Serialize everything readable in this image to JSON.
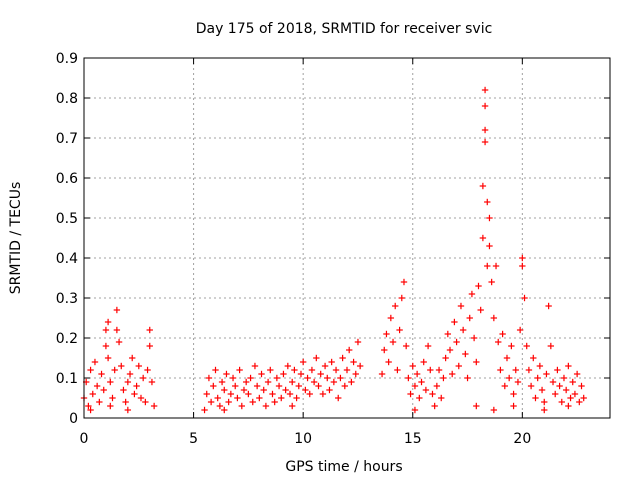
{
  "chart_data": {
    "type": "scatter",
    "title": "Day 175 of 2018, SRMTID for receiver svic",
    "xlabel": "GPS time / hours",
    "ylabel": "SRMTID / TECUs",
    "xlim": [
      0,
      24
    ],
    "ylim": [
      0,
      0.9
    ],
    "xticks": [
      0,
      5,
      10,
      15,
      20
    ],
    "xtick_labels": [
      "0",
      "5",
      "10",
      "15",
      "20"
    ],
    "yticks": [
      0,
      0.1,
      0.2,
      0.3,
      0.4,
      0.5,
      0.6,
      0.7,
      0.8,
      0.9
    ],
    "ytick_labels": [
      "0",
      "0.1",
      "0.2",
      "0.3",
      "0.4",
      "0.5",
      "0.6",
      "0.7",
      "0.8",
      "0.9"
    ],
    "grid": true,
    "marker": "+",
    "color": "#ff0000",
    "series": [
      {
        "name": "SRMTID",
        "points": [
          [
            0.0,
            0.05
          ],
          [
            0.1,
            0.09
          ],
          [
            0.2,
            0.03
          ],
          [
            0.3,
            0.12
          ],
          [
            0.4,
            0.06
          ],
          [
            0.5,
            0.14
          ],
          [
            0.6,
            0.08
          ],
          [
            0.7,
            0.04
          ],
          [
            0.8,
            0.11
          ],
          [
            0.9,
            0.07
          ],
          [
            1.0,
            0.22
          ],
          [
            1.0,
            0.18
          ],
          [
            1.1,
            0.24
          ],
          [
            1.1,
            0.15
          ],
          [
            1.2,
            0.09
          ],
          [
            1.3,
            0.05
          ],
          [
            1.4,
            0.12
          ],
          [
            1.5,
            0.27
          ],
          [
            1.5,
            0.22
          ],
          [
            1.6,
            0.19
          ],
          [
            1.7,
            0.13
          ],
          [
            1.8,
            0.07
          ],
          [
            1.9,
            0.04
          ],
          [
            2.0,
            0.09
          ],
          [
            2.1,
            0.11
          ],
          [
            2.2,
            0.15
          ],
          [
            2.3,
            0.06
          ],
          [
            2.4,
            0.08
          ],
          [
            2.5,
            0.13
          ],
          [
            2.6,
            0.05
          ],
          [
            2.7,
            0.1
          ],
          [
            2.8,
            0.04
          ],
          [
            2.9,
            0.12
          ],
          [
            3.0,
            0.22
          ],
          [
            3.0,
            0.18
          ],
          [
            3.1,
            0.09
          ],
          [
            3.2,
            0.03
          ],
          [
            0.3,
            0.02
          ],
          [
            1.2,
            0.03
          ],
          [
            2.0,
            0.02
          ],
          [
            5.5,
            0.02
          ],
          [
            5.6,
            0.06
          ],
          [
            5.7,
            0.1
          ],
          [
            5.8,
            0.04
          ],
          [
            5.9,
            0.08
          ],
          [
            6.0,
            0.12
          ],
          [
            6.1,
            0.05
          ],
          [
            6.2,
            0.03
          ],
          [
            6.3,
            0.09
          ],
          [
            6.4,
            0.07
          ],
          [
            6.5,
            0.11
          ],
          [
            6.6,
            0.04
          ],
          [
            6.7,
            0.06
          ],
          [
            6.8,
            0.1
          ],
          [
            6.9,
            0.08
          ],
          [
            7.0,
            0.05
          ],
          [
            7.1,
            0.12
          ],
          [
            7.2,
            0.03
          ],
          [
            7.3,
            0.07
          ],
          [
            7.4,
            0.09
          ],
          [
            7.5,
            0.06
          ],
          [
            7.6,
            0.1
          ],
          [
            7.7,
            0.04
          ],
          [
            7.8,
            0.13
          ],
          [
            7.9,
            0.08
          ],
          [
            8.0,
            0.05
          ],
          [
            8.1,
            0.11
          ],
          [
            8.2,
            0.07
          ],
          [
            8.3,
            0.03
          ],
          [
            8.4,
            0.09
          ],
          [
            8.5,
            0.12
          ],
          [
            8.6,
            0.06
          ],
          [
            8.7,
            0.04
          ],
          [
            8.8,
            0.1
          ],
          [
            8.9,
            0.08
          ],
          [
            9.0,
            0.05
          ],
          [
            9.1,
            0.11
          ],
          [
            9.2,
            0.07
          ],
          [
            9.3,
            0.13
          ],
          [
            9.4,
            0.06
          ],
          [
            9.5,
            0.09
          ],
          [
            9.6,
            0.12
          ],
          [
            9.7,
            0.05
          ],
          [
            9.8,
            0.08
          ],
          [
            9.9,
            0.11
          ],
          [
            10.0,
            0.14
          ],
          [
            10.1,
            0.07
          ],
          [
            10.2,
            0.1
          ],
          [
            10.3,
            0.06
          ],
          [
            10.4,
            0.12
          ],
          [
            10.5,
            0.09
          ],
          [
            10.6,
            0.15
          ],
          [
            10.7,
            0.08
          ],
          [
            10.8,
            0.11
          ],
          [
            10.9,
            0.06
          ],
          [
            11.0,
            0.13
          ],
          [
            11.1,
            0.1
          ],
          [
            11.2,
            0.07
          ],
          [
            11.3,
            0.14
          ],
          [
            11.4,
            0.09
          ],
          [
            11.5,
            0.12
          ],
          [
            11.6,
            0.05
          ],
          [
            11.7,
            0.1
          ],
          [
            11.8,
            0.15
          ],
          [
            11.9,
            0.08
          ],
          [
            12.0,
            0.12
          ],
          [
            12.1,
            0.17
          ],
          [
            12.2,
            0.09
          ],
          [
            12.3,
            0.14
          ],
          [
            12.4,
            0.11
          ],
          [
            12.5,
            0.19
          ],
          [
            12.6,
            0.13
          ],
          [
            13.6,
            0.11
          ],
          [
            13.7,
            0.17
          ],
          [
            13.8,
            0.21
          ],
          [
            13.9,
            0.14
          ],
          [
            14.0,
            0.25
          ],
          [
            14.1,
            0.19
          ],
          [
            14.2,
            0.28
          ],
          [
            14.3,
            0.12
          ],
          [
            14.4,
            0.22
          ],
          [
            14.5,
            0.3
          ],
          [
            14.6,
            0.34
          ],
          [
            14.7,
            0.18
          ],
          [
            14.8,
            0.1
          ],
          [
            14.9,
            0.06
          ],
          [
            15.0,
            0.13
          ],
          [
            15.1,
            0.08
          ],
          [
            15.2,
            0.11
          ],
          [
            15.3,
            0.05
          ],
          [
            15.4,
            0.09
          ],
          [
            15.5,
            0.14
          ],
          [
            15.6,
            0.07
          ],
          [
            15.7,
            0.18
          ],
          [
            15.8,
            0.12
          ],
          [
            15.9,
            0.06
          ],
          [
            16.0,
            0.03
          ],
          [
            16.1,
            0.08
          ],
          [
            16.2,
            0.12
          ],
          [
            16.3,
            0.05
          ],
          [
            16.4,
            0.1
          ],
          [
            16.5,
            0.15
          ],
          [
            16.6,
            0.21
          ],
          [
            16.7,
            0.17
          ],
          [
            16.8,
            0.11
          ],
          [
            16.9,
            0.24
          ],
          [
            17.0,
            0.19
          ],
          [
            17.1,
            0.13
          ],
          [
            17.2,
            0.28
          ],
          [
            17.3,
            0.22
          ],
          [
            17.4,
            0.16
          ],
          [
            17.5,
            0.1
          ],
          [
            17.6,
            0.25
          ],
          [
            17.7,
            0.31
          ],
          [
            17.8,
            0.2
          ],
          [
            17.9,
            0.14
          ],
          [
            18.0,
            0.33
          ],
          [
            18.1,
            0.27
          ],
          [
            18.2,
            0.45
          ],
          [
            18.2,
            0.58
          ],
          [
            18.3,
            0.72
          ],
          [
            18.3,
            0.69
          ],
          [
            18.3,
            0.82
          ],
          [
            18.3,
            0.78
          ],
          [
            18.4,
            0.54
          ],
          [
            18.4,
            0.38
          ],
          [
            18.5,
            0.5
          ],
          [
            18.5,
            0.43
          ],
          [
            18.6,
            0.34
          ],
          [
            18.7,
            0.25
          ],
          [
            18.8,
            0.38
          ],
          [
            18.9,
            0.19
          ],
          [
            19.0,
            0.12
          ],
          [
            19.1,
            0.21
          ],
          [
            19.2,
            0.08
          ],
          [
            19.3,
            0.15
          ],
          [
            19.4,
            0.1
          ],
          [
            19.5,
            0.18
          ],
          [
            19.6,
            0.06
          ],
          [
            19.7,
            0.12
          ],
          [
            19.8,
            0.09
          ],
          [
            19.9,
            0.22
          ],
          [
            20.0,
            0.4
          ],
          [
            20.0,
            0.38
          ],
          [
            20.1,
            0.3
          ],
          [
            20.2,
            0.18
          ],
          [
            20.3,
            0.12
          ],
          [
            20.4,
            0.08
          ],
          [
            20.5,
            0.15
          ],
          [
            20.6,
            0.05
          ],
          [
            20.7,
            0.1
          ],
          [
            20.8,
            0.13
          ],
          [
            20.9,
            0.07
          ],
          [
            21.0,
            0.04
          ],
          [
            21.1,
            0.11
          ],
          [
            21.2,
            0.28
          ],
          [
            21.3,
            0.18
          ],
          [
            21.4,
            0.09
          ],
          [
            21.5,
            0.06
          ],
          [
            21.6,
            0.12
          ],
          [
            21.7,
            0.08
          ],
          [
            21.8,
            0.04
          ],
          [
            21.9,
            0.1
          ],
          [
            22.0,
            0.07
          ],
          [
            22.1,
            0.13
          ],
          [
            22.2,
            0.05
          ],
          [
            22.3,
            0.09
          ],
          [
            22.4,
            0.06
          ],
          [
            22.5,
            0.11
          ],
          [
            22.6,
            0.04
          ],
          [
            22.7,
            0.08
          ],
          [
            22.8,
            0.05
          ],
          [
            15.1,
            0.02
          ],
          [
            17.9,
            0.03
          ],
          [
            18.7,
            0.02
          ],
          [
            19.6,
            0.03
          ],
          [
            21.0,
            0.02
          ],
          [
            22.1,
            0.03
          ],
          [
            6.4,
            0.02
          ],
          [
            9.5,
            0.03
          ]
        ]
      }
    ]
  }
}
